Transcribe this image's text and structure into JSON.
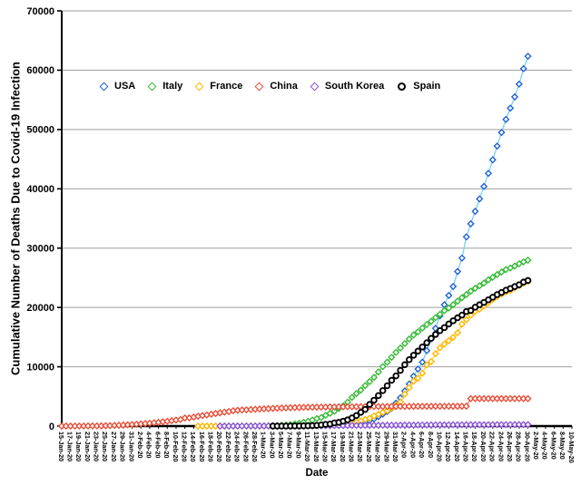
{
  "chart_data": {
    "type": "line",
    "title": "",
    "xlabel": "Date",
    "ylabel": "Cumulative Number of Deaths Due to Covid-19 Infection",
    "ylim": [
      0,
      70000
    ],
    "y_ticks": [
      0,
      10000,
      20000,
      30000,
      40000,
      50000,
      60000,
      70000
    ],
    "grid": true,
    "legend_position": "top-inside",
    "x_first_date": "15-Jan-20",
    "x_last_date": "10-May-20",
    "x_tick_every_days": 2,
    "x_total_days": 117,
    "x_tick_labels": [
      "15-Jan-20",
      "17-Jan-20",
      "19-Jan-20",
      "21-Jan-20",
      "23-Jan-20",
      "25-Jan-20",
      "27-Jan-20",
      "29-Jan-20",
      "31-Jan-20",
      "2-Feb-20",
      "4-Feb-20",
      "6-Feb-20",
      "8-Feb-20",
      "10-Feb-20",
      "12-Feb-20",
      "14-Feb-20",
      "16-Feb-20",
      "18-Feb-20",
      "20-Feb-20",
      "22-Feb-20",
      "24-Feb-20",
      "26-Feb-20",
      "28-Feb-20",
      "1-Mar-20",
      "3-Mar-20",
      "5-Mar-20",
      "7-Mar-20",
      "9-Mar-20",
      "11-Mar-20",
      "13-Mar-20",
      "15-Mar-20",
      "17-Mar-20",
      "19-Mar-20",
      "21-Mar-20",
      "23-Mar-20",
      "25-Mar-20",
      "27-Mar-20",
      "29-Mar-20",
      "31-Mar-20",
      "2-Apr-20",
      "4-Apr-20",
      "6-Apr-20",
      "8-Apr-20",
      "10-Apr-20",
      "12-Apr-20",
      "14-Apr-20",
      "16-Apr-20",
      "18-Apr-20",
      "20-Apr-20",
      "22-Apr-20",
      "24-Apr-20",
      "26-Apr-20",
      "28-Apr-20",
      "30-Apr-20",
      "2-May-20",
      "4-May-20",
      "6-May-20",
      "8-May-20",
      "10-May-20"
    ],
    "series": [
      {
        "name": "USA",
        "marker": "diamond",
        "color": "#2163d6",
        "line_color": "#7fd3f2",
        "start_day": 45,
        "values": [
          1,
          1,
          6,
          7,
          11,
          12,
          14,
          17,
          21,
          22,
          28,
          36,
          40,
          47,
          54,
          63,
          85,
          108,
          118,
          200,
          244,
          307,
          417,
          557,
          706,
          942,
          1209,
          1581,
          2026,
          2467,
          2978,
          3873,
          4757,
          5926,
          7087,
          8407,
          9619,
          10783,
          12722,
          14695,
          16478,
          18586,
          20463,
          22020,
          23529,
          26057,
          28326,
          31900,
          34100,
          36200,
          38300,
          40400,
          42600,
          44900,
          47200,
          49500,
          51700,
          53600,
          55500,
          57650,
          60250,
          62350
        ]
      },
      {
        "name": "Italy",
        "marker": "diamond",
        "color": "#3abb3a",
        "line_color": "#6fd06f",
        "start_day": 37,
        "values": [
          1,
          2,
          3,
          7,
          10,
          12,
          17,
          21,
          29,
          34,
          52,
          79,
          107,
          148,
          197,
          233,
          366,
          463,
          631,
          827,
          1016,
          1266,
          1441,
          1809,
          2158,
          2503,
          2978,
          3405,
          4032,
          4825,
          5476,
          6077,
          6820,
          7503,
          8215,
          9134,
          10023,
          10779,
          11591,
          12428,
          13155,
          13915,
          14681,
          15362,
          15887,
          16523,
          17127,
          17669,
          18279,
          18849,
          19468,
          19899,
          20465,
          21067,
          21645,
          22170,
          22745,
          23227,
          23660,
          24114,
          24648,
          25085,
          25549,
          25969,
          26384,
          26644,
          26977,
          27359,
          27682,
          27967
        ]
      },
      {
        "name": "France",
        "marker": "diamond",
        "color": "#ffb800",
        "line_color": "#ffd34d",
        "start_day": 31,
        "values": [
          1,
          1,
          1,
          1,
          1,
          1,
          1,
          1,
          1,
          1,
          1,
          2,
          2,
          2,
          2,
          2,
          3,
          4,
          4,
          6,
          9,
          11,
          19,
          25,
          33,
          48,
          61,
          79,
          91,
          127,
          148,
          175,
          264,
          372,
          450,
          562,
          674,
          860,
          1100,
          1331,
          1696,
          1995,
          2314,
          2606,
          3024,
          3523,
          4032,
          5387,
          6507,
          7560,
          8078,
          8911,
          10328,
          10869,
          12210,
          13197,
          13832,
          14393,
          14967,
          15729,
          17167,
          17920,
          18681,
          19323,
          19718,
          20265,
          20796,
          21340,
          21856,
          22245,
          22614,
          22856,
          23293,
          23660,
          24087,
          24376
        ]
      },
      {
        "name": "China",
        "marker": "diamond",
        "color": "#e8503a",
        "line_color": "#ef8270",
        "start_day": 0,
        "values": [
          2,
          3,
          4,
          6,
          6,
          9,
          17,
          17,
          25,
          41,
          56,
          80,
          106,
          132,
          170,
          213,
          259,
          304,
          361,
          425,
          490,
          563,
          636,
          722,
          811,
          908,
          1016,
          1113,
          1367,
          1380,
          1523,
          1665,
          1770,
          1868,
          2004,
          2118,
          2236,
          2345,
          2442,
          2592,
          2663,
          2715,
          2744,
          2788,
          2835,
          2870,
          2912,
          2943,
          2981,
          3013,
          3042,
          3070,
          3097,
          3119,
          3136,
          3158,
          3169,
          3176,
          3189,
          3199,
          3213,
          3226,
          3237,
          3245,
          3248,
          3255,
          3261,
          3270,
          3277,
          3281,
          3287,
          3292,
          3296,
          3299,
          3304,
          3305,
          3309,
          3312,
          3318,
          3322,
          3326,
          3330,
          3331,
          3333,
          3335,
          3336,
          3339,
          3339,
          3341,
          3341,
          3342,
          3342,
          3342,
          4632,
          4632,
          4632,
          4632,
          4632,
          4632,
          4632,
          4632,
          4633,
          4633,
          4633,
          4633,
          4633,
          4633
        ]
      },
      {
        "name": "South Korea",
        "marker": "diamond",
        "color": "#8a57d9",
        "line_color": "#ab8ae6",
        "start_day": 36,
        "values": [
          1,
          2,
          2,
          6,
          8,
          10,
          12,
          13,
          13,
          17,
          22,
          28,
          28,
          35,
          35,
          42,
          44,
          50,
          53,
          54,
          60,
          66,
          66,
          72,
          75,
          75,
          81,
          84,
          91,
          94,
          102,
          104,
          111,
          120,
          126,
          131,
          139,
          144,
          152,
          158,
          162,
          165,
          169,
          174,
          177,
          183,
          186,
          192,
          200,
          204,
          208,
          211,
          214,
          217,
          222,
          225,
          229,
          230,
          232,
          234,
          236,
          238,
          240,
          240,
          242,
          243,
          243,
          244,
          246,
          246,
          247
        ]
      },
      {
        "name": "Spain",
        "marker": "circle",
        "color": "#000000",
        "line_color": "#000000",
        "start_day": 48,
        "values": [
          1,
          2,
          3,
          5,
          10,
          17,
          28,
          35,
          54,
          84,
          120,
          195,
          289,
          342,
          533,
          623,
          830,
          1043,
          1375,
          1772,
          2311,
          2808,
          3647,
          4365,
          5138,
          5982,
          6803,
          7716,
          8464,
          9387,
          10348,
          11198,
          11947,
          12641,
          13341,
          14045,
          14792,
          15447,
          16081,
          16606,
          17209,
          17756,
          18255,
          18708,
          19315,
          19478,
          20043,
          20453,
          20852,
          21282,
          21717,
          22157,
          22524,
          22902,
          23190,
          23521,
          23822,
          24275,
          24543
        ]
      }
    ],
    "axis_color": "#000000",
    "gridline_color": "#9e9e9e"
  }
}
